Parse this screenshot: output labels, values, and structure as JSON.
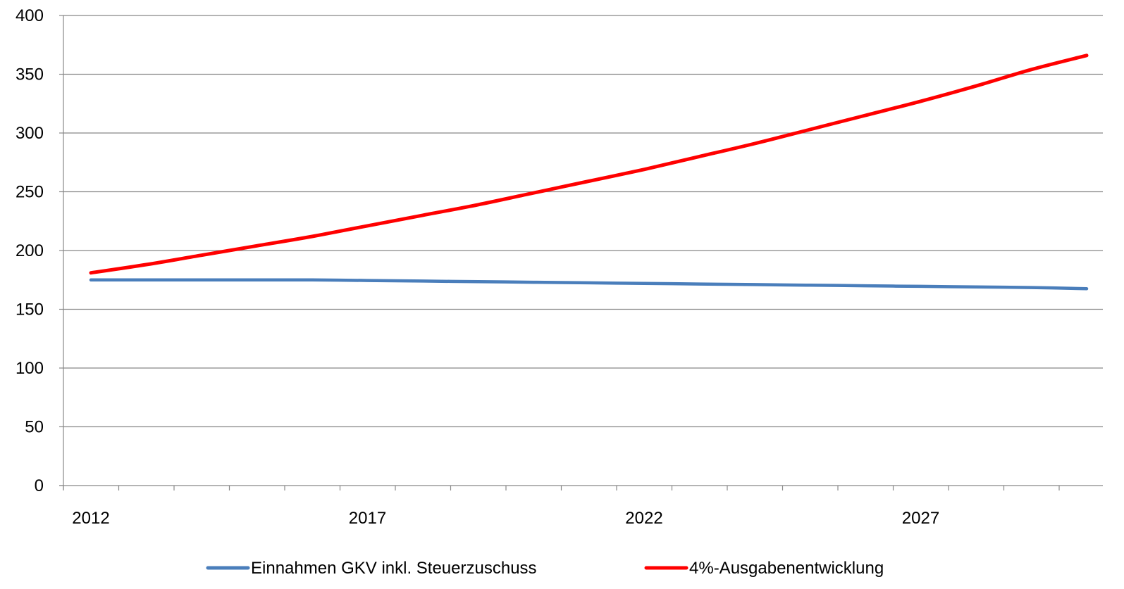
{
  "chart_data": {
    "type": "line",
    "title": "",
    "xlabel": "",
    "ylabel": "",
    "x": [
      2012,
      2013,
      2014,
      2015,
      2016,
      2017,
      2018,
      2019,
      2020,
      2021,
      2022,
      2023,
      2024,
      2025,
      2026,
      2027,
      2028,
      2029,
      2030
    ],
    "x_tick_labels": [
      "2012",
      "2017",
      "2022",
      "2027"
    ],
    "y_ticks": [
      0,
      50,
      100,
      150,
      200,
      250,
      300,
      350,
      400
    ],
    "ylim": [
      0,
      400
    ],
    "grid": "horizontal",
    "legend_position": "bottom",
    "series": [
      {
        "name": "Einnahmen GKV inkl. Steuerzuschuss",
        "color": "#4a7ebb",
        "values": [
          175,
          175,
          175,
          175,
          175,
          174.5,
          174,
          173.5,
          173,
          172.5,
          172,
          171.5,
          171,
          170.5,
          170,
          169.5,
          169,
          168.5,
          167.5
        ]
      },
      {
        "name": "4%-Ausgabenentwicklung",
        "color": "#ff0000",
        "values": [
          181,
          188,
          196,
          204,
          212,
          221,
          230,
          239,
          249,
          259,
          269,
          280,
          291,
          303,
          315,
          327,
          340,
          354,
          366
        ]
      }
    ]
  }
}
